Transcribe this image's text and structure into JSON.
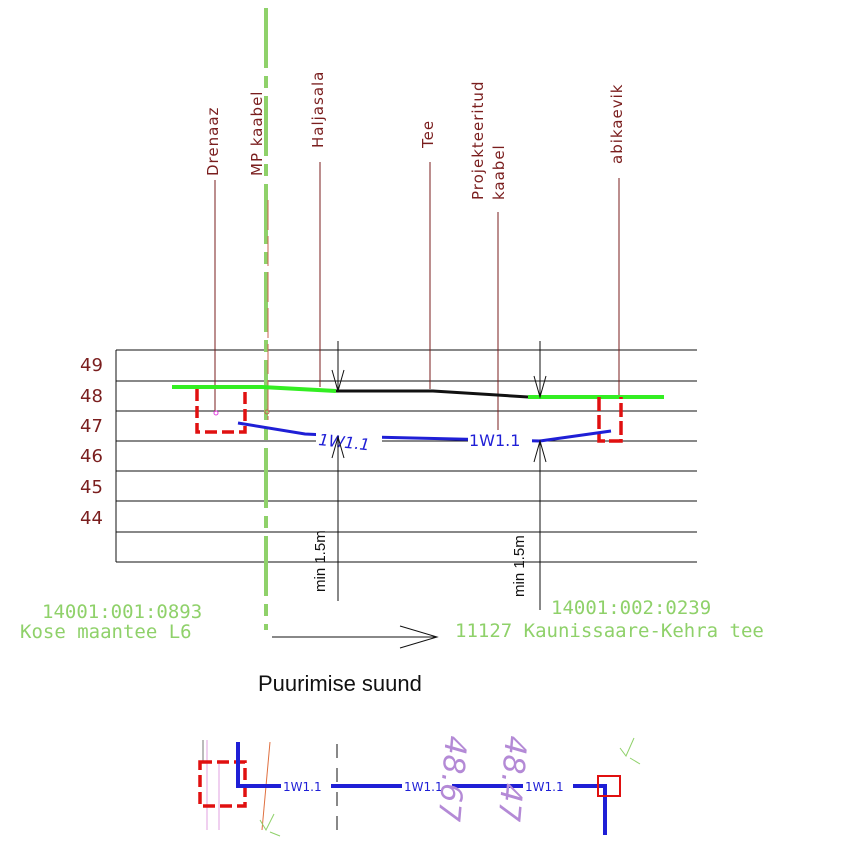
{
  "layer_labels": {
    "drenaaz": "Drenaaz",
    "mp_kaabel": "MP kaabel",
    "haljasala": "Haljasala",
    "tee": "Tee",
    "projekteeritud_line1": "Projekteeritud",
    "projekteeritud_line2": "kaabel",
    "abikaevik": "abikaevik"
  },
  "elevations": [
    "49",
    "48",
    "47",
    "46",
    "45",
    "44"
  ],
  "cable_labels": {
    "profile_left": "1W1.1",
    "profile_right": "1W1.1",
    "plan_1": "1W1.1",
    "plan_2": "1W1.1",
    "plan_3": "1W1.1"
  },
  "min_depth": {
    "left": "min 1.5m",
    "right": "min 1.5m"
  },
  "parcels": {
    "left_id": "14001:001:0893",
    "left_road": "Kose maantee L6",
    "right_id": "14001:002:0239",
    "right_road": "11127 Kaunissaare-Kehra tee"
  },
  "direction_label": "Puurimise suund",
  "plan_dims": {
    "left": "48.67",
    "right": "48.47"
  },
  "colors": {
    "maroon": "#7a1e1e",
    "green": "#33ee22",
    "light_green": "#8fd16a",
    "blue": "#1f1fd6",
    "red": "#e01010",
    "purple": "#b48ad6"
  }
}
